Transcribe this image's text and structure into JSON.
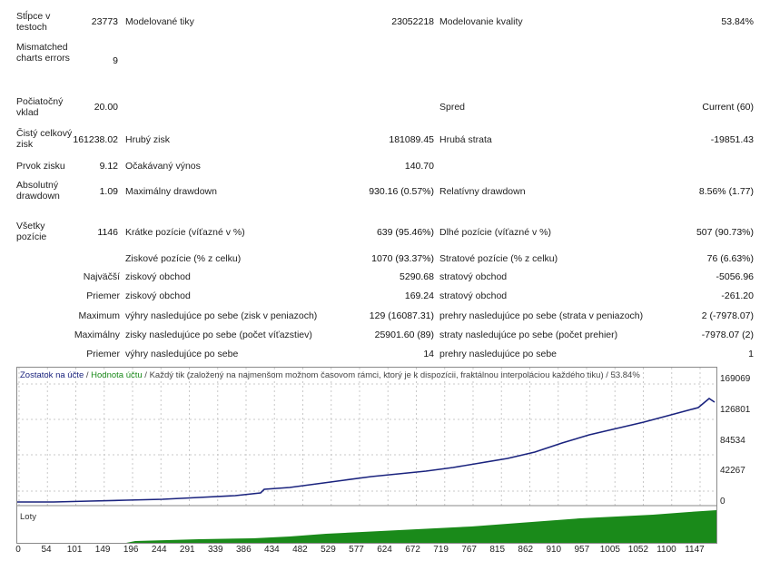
{
  "report": {
    "rows": [
      {
        "c1": "Stĺpce v testoch",
        "c2": "23773",
        "c3": "Modelované tiky",
        "c4": "23052218",
        "c5": "Modelovanie kvality",
        "c6": "53.84%"
      },
      {
        "c1": "Mismatched charts errors",
        "c2": "9"
      },
      {
        "c1": "Počiatočný vklad",
        "c2": "20.00",
        "c5": "Spred",
        "c6": "Current (60)"
      },
      {
        "c1": "Čistý celkový zisk",
        "c2": "161238.02",
        "c3": "Hrubý zisk",
        "c4": "181089.45",
        "c5": "Hrubá strata",
        "c6": "-19851.43"
      },
      {
        "c1": "Prvok zisku",
        "c2": "9.12",
        "c3": "Očakávaný výnos",
        "c4": "140.70"
      },
      {
        "c1": "Absolutný drawdown",
        "c2": "1.09",
        "c3": "Maximálny drawdown",
        "c4": "930.16 (0.57%)",
        "c5": "Relatívny drawdown",
        "c6": "8.56% (1.77)"
      },
      {
        "c1": "Všetky pozície",
        "c2": "1146",
        "c3": "Krátke pozície (víťazné v %)",
        "c4": "639 (95.46%)",
        "c5": "Dlhé pozície (víťazné v %)",
        "c6": "507 (90.73%)"
      },
      {
        "c3": "Ziskové pozície (% z celku)",
        "c4": "1070 (93.37%)",
        "c5": "Stratové pozície (% z celku)",
        "c6": "76 (6.63%)"
      },
      {
        "c2": "Najväčší",
        "c3": "ziskový obchod",
        "c4": "5290.68",
        "c5": "stratový obchod",
        "c6": "-5056.96"
      },
      {
        "c2": "Priemer",
        "c3": "ziskový obchod",
        "c4": "169.24",
        "c5": "stratový obchod",
        "c6": "-261.20"
      },
      {
        "c2": "Maximum",
        "c3": "výhry nasledujúce po sebe (zisk v peniazoch)",
        "c4": "129 (16087.31)",
        "c5": "prehry nasledujúce po sebe (strata v peniazoch)",
        "c6": "2 (-7978.07)"
      },
      {
        "c2": "Maximálny",
        "c3": "zisky nasledujúce po sebe (počet víťazstiev)",
        "c4": "25901.60 (89)",
        "c5": "straty nasledujúce po sebe (počet prehier)",
        "c6": "-7978.07 (2)"
      },
      {
        "c2": "Priemer",
        "c3": "výhry nasledujúce po sebe",
        "c4": "14",
        "c5": "prehry nasledujúce po sebe",
        "c6": "1"
      }
    ]
  },
  "chart": {
    "legend": {
      "balance": "Zostatok na účte",
      "equity": "Hodnota účtu",
      "description": "Každý tik (založený na najmenšom možnom časovom rámci, ktorý je k dispozícii, fraktálnou interpoláciou každého tiku)",
      "quality": "53.84%"
    },
    "lots_label": "Loty",
    "y_ticks": [
      "169069",
      "126801",
      "84534",
      "42267",
      "0"
    ],
    "x_ticks": [
      "0",
      "54",
      "101",
      "149",
      "196",
      "244",
      "291",
      "339",
      "386",
      "434",
      "482",
      "529",
      "577",
      "624",
      "672",
      "719",
      "767",
      "815",
      "862",
      "910",
      "957",
      "1005",
      "1052",
      "1100",
      "1147"
    ],
    "colors": {
      "balance": "#1a237e",
      "equity": "#1a8a1a",
      "grid": "#c8c8c8"
    }
  }
}
